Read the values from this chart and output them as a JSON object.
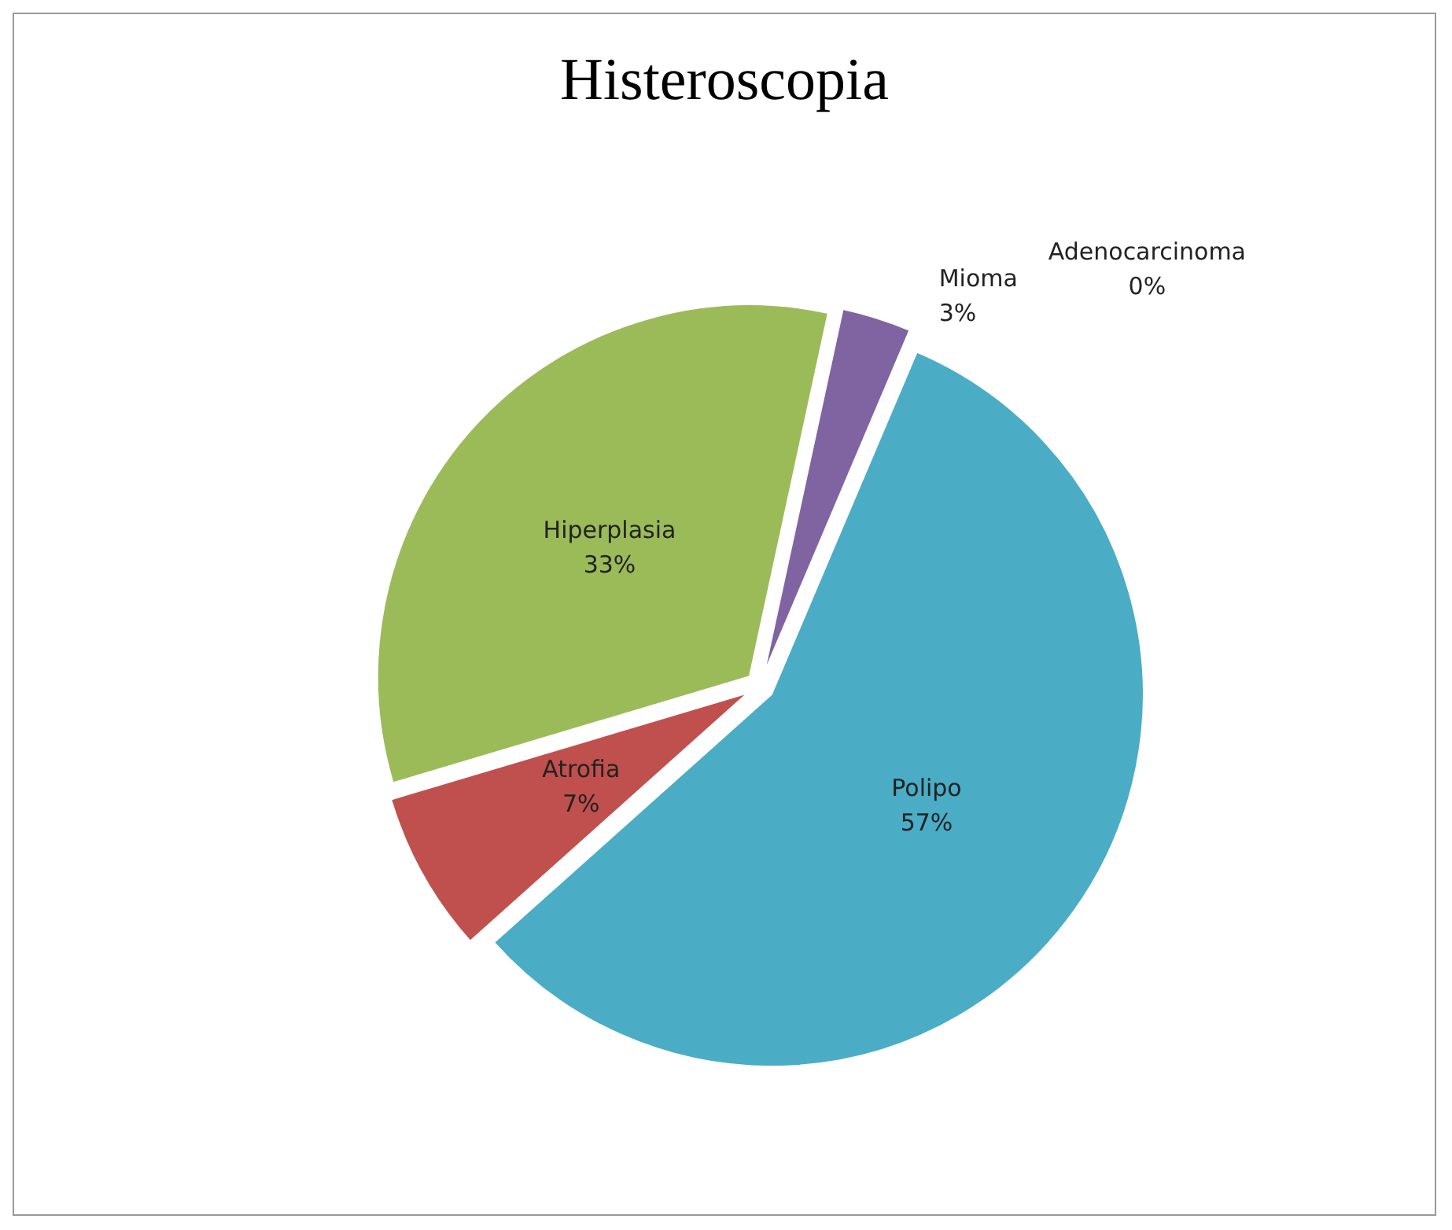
{
  "chart_data": {
    "type": "pie",
    "title": "Histeroscopia",
    "categories": [
      "Polipo",
      "Atrofia",
      "Hiperplasia",
      "Mioma",
      "Adenocarcinoma"
    ],
    "values": [
      57,
      7,
      33,
      3,
      0
    ],
    "colors": [
      "#4bacc6",
      "#c0504d",
      "#9bbb59",
      "#8064a2",
      "#4f81bd"
    ],
    "value_labels": [
      "57%",
      "7%",
      "33%",
      "3%",
      "0%"
    ],
    "legend": false
  }
}
